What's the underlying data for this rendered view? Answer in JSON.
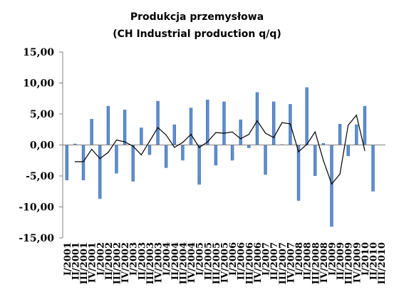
{
  "chart_data": {
    "type": "bar",
    "title": "Produkcja przemysłowa",
    "subtitle": "(CH Industrial production q/q)",
    "ylim": [
      -15,
      15
    ],
    "yticks": [
      "15,00",
      "10,00",
      "5,00",
      "0,00",
      "-5,00",
      "-10,00",
      "-15,00"
    ],
    "ytick_values": [
      15,
      10,
      5,
      0,
      -5,
      -10,
      -15
    ],
    "grid": false,
    "legend": "none",
    "colors": {
      "bar": "#3a6fb7",
      "bar_light": "#6f9ad6",
      "line": "#000000",
      "axis": "#808080"
    },
    "categories": [
      "I/2001",
      "II/2001",
      "III/2001",
      "IV/2001",
      "I/2002",
      "II/2002",
      "III/2002",
      "IV/2002",
      "I/2003",
      "II/2003",
      "III/2003",
      "IV/2003",
      "I/2004",
      "II/2004",
      "III/2004",
      "IV/2004",
      "I/2005",
      "II/2005",
      "III/2005",
      "IV/2005",
      "I/2006",
      "II/2006",
      "III/2006",
      "IV/2006",
      "I/2007",
      "II/2007",
      "III/2007",
      "IV/2007",
      "I/2008",
      "II/2008",
      "III/2008",
      "IV/2008",
      "I/2009",
      "II/2009",
      "III/2009",
      "IV/2009",
      "I/2010",
      "II/2010",
      "III/2010"
    ],
    "series": [
      {
        "type": "bar",
        "values": [
          -5.7,
          0.2,
          -5.7,
          4.2,
          -8.7,
          6.3,
          -4.6,
          5.7,
          -5.9,
          2.8,
          -1.6,
          7.1,
          -3.7,
          3.3,
          -2.5,
          6.0,
          -6.4,
          7.3,
          -3.3,
          7.0,
          -2.5,
          4.1,
          -0.5,
          8.5,
          -4.8,
          7.0,
          0.1,
          6.6,
          -9.0,
          9.3,
          -5.0,
          0.3,
          -13.2,
          3.4,
          -1.8,
          3.3,
          6.3,
          -7.5,
          0
        ]
      },
      {
        "type": "line",
        "values": [
          null,
          -2.7,
          -2.7,
          -0.7,
          -2.2,
          -1.2,
          0.8,
          0.5,
          -0.2,
          -1.6,
          0.6,
          2.8,
          1.6,
          -0.4,
          0.4,
          1.7,
          -0.4,
          0.5,
          2.0,
          1.9,
          2.1,
          1.0,
          1.7,
          3.9,
          1.9,
          1.2,
          3.6,
          3.4,
          -1.1,
          0.1,
          2.1,
          -2.5,
          -6.3,
          -4.7,
          3.2,
          4.8,
          -0.9,
          null,
          null
        ]
      }
    ]
  }
}
